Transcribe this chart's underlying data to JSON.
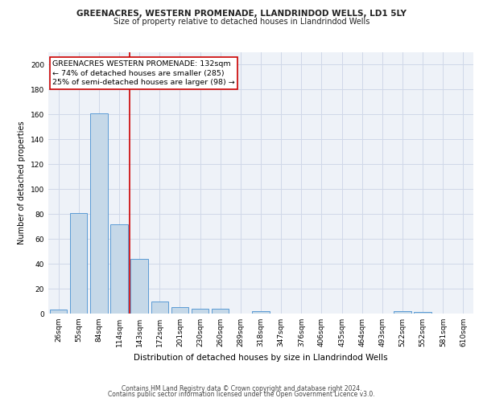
{
  "title1": "GREENACRES, WESTERN PROMENADE, LLANDRINDOD WELLS, LD1 5LY",
  "title2": "Size of property relative to detached houses in Llandrindod Wells",
  "xlabel": "Distribution of detached houses by size in Llandrindod Wells",
  "ylabel": "Number of detached properties",
  "footer1": "Contains HM Land Registry data © Crown copyright and database right 2024.",
  "footer2": "Contains public sector information licensed under the Open Government Licence v3.0.",
  "categories": [
    "26sqm",
    "55sqm",
    "84sqm",
    "114sqm",
    "143sqm",
    "172sqm",
    "201sqm",
    "230sqm",
    "260sqm",
    "289sqm",
    "318sqm",
    "347sqm",
    "376sqm",
    "406sqm",
    "435sqm",
    "464sqm",
    "493sqm",
    "522sqm",
    "552sqm",
    "581sqm",
    "610sqm"
  ],
  "values": [
    3,
    81,
    161,
    72,
    44,
    10,
    5,
    4,
    4,
    0,
    2,
    0,
    0,
    0,
    0,
    0,
    0,
    2,
    1,
    0,
    0
  ],
  "bar_color": "#c5d8e8",
  "bar_edge_color": "#5b9bd5",
  "vline_color": "#cc0000",
  "annotation_text": "GREENACRES WESTERN PROMENADE: 132sqm\n← 74% of detached houses are smaller (285)\n25% of semi-detached houses are larger (98) →",
  "annotation_box_color": "#ffffff",
  "annotation_box_edge": "#cc0000",
  "ylim": [
    0,
    210
  ],
  "yticks": [
    0,
    20,
    40,
    60,
    80,
    100,
    120,
    140,
    160,
    180,
    200
  ],
  "grid_color": "#d0d8e8",
  "background_color": "#eef2f8",
  "title1_fontsize": 7.5,
  "title2_fontsize": 7.0,
  "xlabel_fontsize": 7.5,
  "ylabel_fontsize": 7.0,
  "tick_fontsize": 6.5,
  "footer_fontsize": 5.5,
  "annotation_fontsize": 6.8
}
